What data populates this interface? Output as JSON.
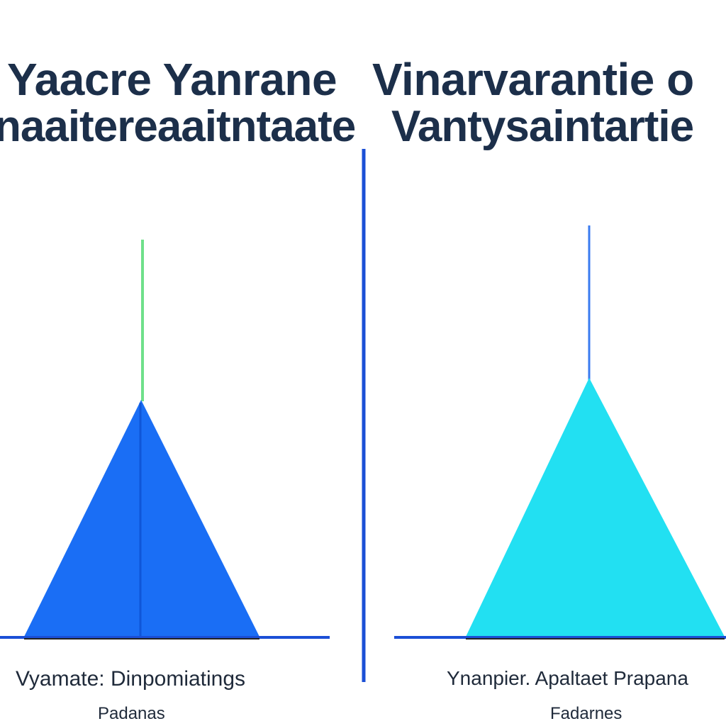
{
  "title": {
    "line1_left": "Yaacre Yanrane",
    "line1_right": "Vinarvarantie o",
    "line2_left": "naaitereaaitntaate",
    "line2_right": "Vantysaintartie"
  },
  "left_panel": {
    "caption": "Vyamate:  Dinpomiatings",
    "subcaption": "Padanas",
    "fill_color": "#1a6ef5",
    "stem_color": "#6fe08a"
  },
  "right_panel": {
    "caption": "Ynanpier. Apaltaet  Prapana",
    "subcaption": "Fadarnes",
    "fill_color": "#22e0f2",
    "stem_color": "#3a7bf0"
  },
  "divider_color": "#1b4fd6",
  "baseline_color": "#1b4fd6"
}
